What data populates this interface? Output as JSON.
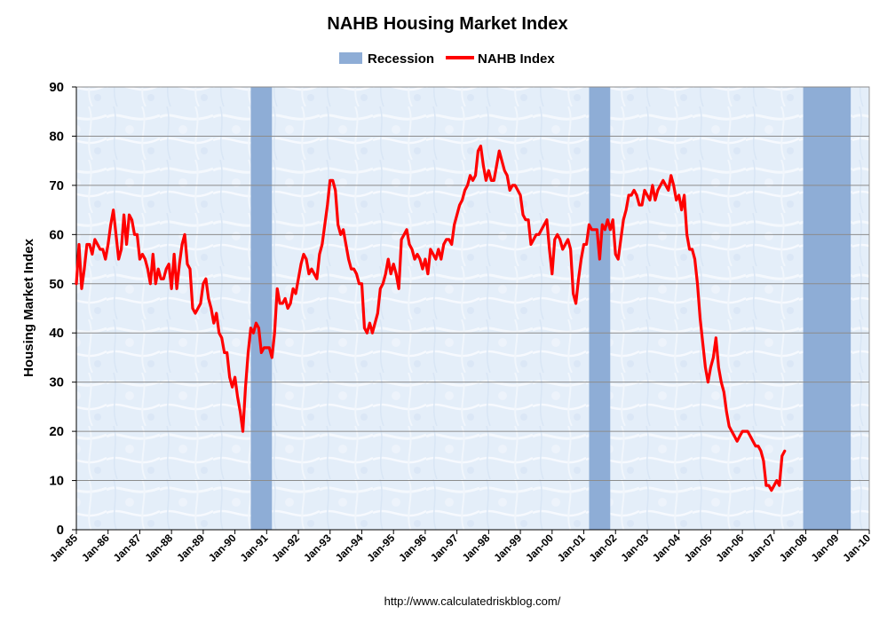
{
  "chart_data": {
    "type": "line",
    "title": "NAHB Housing Market Index",
    "ylabel": "Housing Market Index",
    "xlabel": "",
    "ylim": [
      0,
      90
    ],
    "yticks": [
      0,
      10,
      20,
      30,
      40,
      50,
      60,
      70,
      80,
      90
    ],
    "xlim": [
      "1985-01",
      "2010-01"
    ],
    "xtick_labels": [
      "Jan-85",
      "Jan-86",
      "Jan-87",
      "Jan-88",
      "Jan-89",
      "Jan-90",
      "Jan-91",
      "Jan-92",
      "Jan-93",
      "Jan-94",
      "Jan-95",
      "Jan-96",
      "Jan-97",
      "Jan-98",
      "Jan-99",
      "Jan-00",
      "Jan-01",
      "Jan-02",
      "Jan-03",
      "Jan-04",
      "Jan-05",
      "Jan-06",
      "Jan-07",
      "Jan-08",
      "Jan-09",
      "Jan-10"
    ],
    "grid": "horizontal",
    "legend_placement": "top-center",
    "legend": [
      {
        "label": "Recession",
        "kind": "area",
        "color": "#8eadd6"
      },
      {
        "label": "NAHB Index",
        "kind": "line",
        "color": "#ff0000"
      }
    ],
    "recessions": [
      {
        "start": "1990-07",
        "end": "1991-03"
      },
      {
        "start": "2001-03",
        "end": "2001-11"
      },
      {
        "start": "2007-12",
        "end": "2009-06"
      }
    ],
    "series": [
      {
        "name": "NAHB Index",
        "color": "#ff0000",
        "start": "1985-01",
        "frequency": "monthly",
        "values": [
          50,
          58,
          49,
          53,
          58,
          58,
          56,
          59,
          58,
          57,
          57,
          55,
          58,
          62,
          65,
          60,
          55,
          57,
          64,
          58,
          64,
          63,
          60,
          60,
          55,
          56,
          55,
          53,
          50,
          56,
          50,
          53,
          51,
          51,
          53,
          54,
          49,
          56,
          49,
          54,
          58,
          60,
          54,
          53,
          45,
          44,
          45,
          46,
          50,
          51,
          47,
          45,
          42,
          44,
          40,
          39,
          36,
          36,
          31,
          29,
          31,
          27,
          24,
          20,
          29,
          36,
          41,
          40,
          42,
          41,
          36,
          37,
          37,
          37,
          35,
          40,
          49,
          46,
          46,
          47,
          45,
          46,
          49,
          48,
          51,
          54,
          56,
          55,
          52,
          53,
          52,
          51,
          56,
          58,
          62,
          66,
          71,
          71,
          69,
          62,
          60,
          61,
          58,
          55,
          53,
          53,
          52,
          50,
          50,
          41,
          40,
          42,
          40,
          42,
          44,
          49,
          50,
          52,
          55,
          52,
          54,
          52,
          49,
          59,
          60,
          61,
          58,
          57,
          55,
          56,
          55,
          53,
          55,
          52,
          57,
          56,
          55,
          57,
          55,
          58,
          59,
          59,
          58,
          62,
          64,
          66,
          67,
          69,
          70,
          72,
          71,
          72,
          77,
          78,
          74,
          71,
          73,
          71,
          71,
          74,
          77,
          75,
          73,
          72,
          69,
          70,
          70,
          69,
          68,
          64,
          63,
          63,
          58,
          59,
          60,
          60,
          61,
          62,
          63,
          57,
          52,
          59,
          60,
          59,
          57,
          58,
          59,
          57,
          48,
          46,
          51,
          55,
          58,
          58,
          62,
          61,
          61,
          61,
          55,
          62,
          61,
          63,
          61,
          63,
          56,
          55,
          59,
          63,
          65,
          68,
          68,
          69,
          68,
          66,
          66,
          69,
          68,
          67,
          70,
          67,
          69,
          70,
          71,
          70,
          69,
          72,
          70,
          67,
          68,
          65,
          68,
          60,
          57,
          57,
          55,
          50,
          43,
          38,
          33,
          30,
          33,
          35,
          39,
          33,
          30,
          28,
          24,
          21,
          20,
          19,
          18,
          19,
          20,
          20,
          20,
          19,
          18,
          17,
          17,
          16,
          14,
          9,
          9,
          8,
          9,
          10,
          9,
          15,
          16
        ]
      }
    ],
    "source_url": "http://www.calculatedriskblog.com/"
  }
}
